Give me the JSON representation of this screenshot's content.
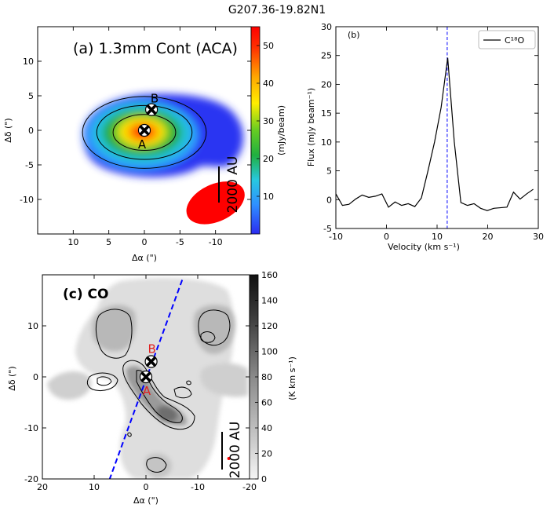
{
  "figure_title": "G207.36-19.82N1",
  "chart_data": [
    {
      "panel": "a",
      "type": "heatmap",
      "title": "(a) 1.3mm Cont (ACA)",
      "xlabel": "Δα (\")",
      "ylabel": "Δδ (\")",
      "xlim": [
        -15,
        15
      ],
      "ylim": [
        -15,
        15
      ],
      "x_ticks": [
        -10,
        -5,
        0,
        5,
        10
      ],
      "y_ticks": [
        -10,
        -5,
        0,
        5,
        10
      ],
      "colorbar": {
        "label": "(mJy/beam)",
        "range": [
          0,
          55
        ],
        "ticks": [
          10,
          20,
          30,
          40,
          50
        ],
        "colors": [
          "#2b2bf0",
          "#2f8fff",
          "#28c8e0",
          "#20b040",
          "#66cc22",
          "#ffee00",
          "#ffa500",
          "#ff3000",
          "#ff0000"
        ]
      },
      "sources": [
        {
          "label": "A",
          "x": 0,
          "y": 0
        },
        {
          "label": "B",
          "x": -1,
          "y": 3
        }
      ],
      "contour_levels_arcsec": [
        {
          "a": 8.7,
          "b": 5.2
        },
        {
          "a": 6.7,
          "b": 3.9
        },
        {
          "a": 4.4,
          "b": 2.6
        }
      ],
      "beam": {
        "center": [
          -10,
          -10.5
        ],
        "major": 8.7,
        "minor": 5.4,
        "pa_deg": 25,
        "color": "#ff0000"
      },
      "scalebar_label": "2000 AU"
    },
    {
      "panel": "b",
      "type": "line",
      "title": "(b)",
      "xlabel": "Velocity  (km s⁻¹)",
      "ylabel": "Flux (mJy beam⁻¹)",
      "xlim": [
        -10,
        30
      ],
      "ylim": [
        -5,
        30
      ],
      "x_ticks": [
        -10,
        0,
        10,
        20,
        30
      ],
      "y_ticks": [
        -5,
        0,
        5,
        10,
        15,
        20,
        25,
        30
      ],
      "vline_x": 12,
      "vline_color": "#0000ff",
      "legend": "C¹⁸O",
      "series": [
        {
          "name": "C18O",
          "x": [
            -10,
            -8.7,
            -7.4,
            -6.1,
            -4.8,
            -3.5,
            -2.2,
            -0.9,
            0.4,
            1.7,
            3,
            4.3,
            5.6,
            6.9,
            8.2,
            9.5,
            10.8,
            12.1,
            13.4,
            14.7,
            16,
            17.3,
            18.6,
            19.9,
            21.2,
            22.5,
            23.8,
            25.1,
            26.4,
            27.7,
            29
          ],
          "y": [
            1,
            -1,
            -0.8,
            0.1,
            0.8,
            0.4,
            0.6,
            1,
            -1.3,
            -0.4,
            -1,
            -0.7,
            -1.2,
            0.3,
            5,
            10,
            16,
            24.6,
            10,
            -0.5,
            -1,
            -0.7,
            -1.5,
            -1.9,
            -1.5,
            -1.4,
            -1.3,
            1.3,
            0.1,
            1,
            1.8
          ]
        }
      ]
    },
    {
      "panel": "c",
      "type": "heatmap",
      "title": "(c) CO",
      "xlabel": "Δα (\")",
      "ylabel": "Δδ (\")",
      "xlim": [
        -20,
        20
      ],
      "ylim": [
        -20,
        20
      ],
      "x_ticks": [
        -20,
        -10,
        0,
        10,
        20
      ],
      "y_ticks": [
        -20,
        -10,
        0,
        10
      ],
      "colorbar": {
        "label": "(K km s⁻¹)",
        "range": [
          0,
          160
        ],
        "ticks": [
          0,
          20,
          40,
          60,
          80,
          100,
          120,
          140,
          160
        ]
      },
      "sources": [
        {
          "label": "A",
          "x": 0,
          "y": 0
        },
        {
          "label": "B",
          "x": -1,
          "y": 3
        }
      ],
      "outflow_axis": {
        "from": [
          -7,
          19
        ],
        "to": [
          7,
          -20
        ],
        "color": "#0000ff"
      },
      "beam_color": "#ff0000",
      "scalebar_label": "2000 AU"
    }
  ]
}
